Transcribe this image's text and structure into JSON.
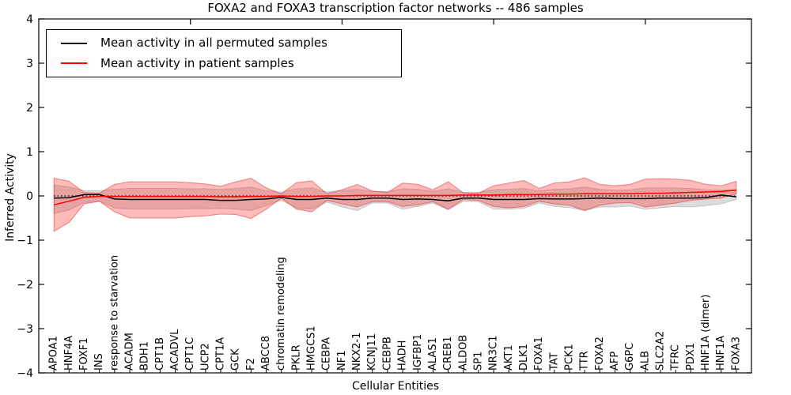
{
  "title": "FOXA2 and FOXA3 transcription factor networks -- 486 samples",
  "legend": {
    "items": [
      {
        "label": "Mean activity in all permuted samples",
        "color": "#000000"
      },
      {
        "label": "Mean activity in patient samples",
        "color": "#ff0000"
      }
    ]
  },
  "axes": {
    "ylabel": "Inferred Activity",
    "xlabel": "Cellular Entities",
    "yticks": [
      {
        "value": -4,
        "label": "−4"
      },
      {
        "value": -3,
        "label": "−3"
      },
      {
        "value": -2,
        "label": "−2"
      },
      {
        "value": -1,
        "label": "−1"
      },
      {
        "value": 0,
        "label": "0"
      },
      {
        "value": 1,
        "label": "1"
      },
      {
        "value": 2,
        "label": "2"
      },
      {
        "value": 3,
        "label": "3"
      },
      {
        "value": 4,
        "label": "4"
      }
    ],
    "top_tick_indices": [
      9,
      19,
      29,
      39
    ]
  },
  "chart_data": {
    "type": "line",
    "title": "FOXA2 and FOXA3 transcription factor networks -- 486 samples",
    "xlabel": "Cellular Entities",
    "ylabel": "Inferred Activity",
    "ylim": [
      -4,
      4
    ],
    "grid": false,
    "legend_position": "upper left",
    "zero_reference_line": true,
    "categories": [
      "APOA1",
      "HNF4A",
      "FOXF1",
      "INS",
      "response to starvation",
      "ACADM",
      "BDH1",
      "CPT1B",
      "ACADVL",
      "CPT1C",
      "UCP2",
      "CPT1A",
      "GCK",
      "F2",
      "ABCC8",
      "chromatin remodeling",
      "PKLR",
      "HMGCS1",
      "CEBPA",
      "NF1",
      "NKX2-1",
      "KCNJ11",
      "CEBPB",
      "HADH",
      "IGFBP1",
      "ALAS1",
      "CREB1",
      "ALDOB",
      "SP1",
      "NR3C1",
      "AKT1",
      "DLK1",
      "FOXA1",
      "TAT",
      "PCK1",
      "TTR",
      "FOXA2",
      "AFP",
      "G6PC",
      "ALB",
      "SLC2A2",
      "TFRC",
      "PDX1",
      "HNF1A (dimer)",
      "HNF1A",
      "FOXA3"
    ],
    "series": [
      {
        "name": "Mean activity in all permuted samples",
        "id": "permuted-mean",
        "color": "#000000",
        "values": [
          -0.05,
          -0.04,
          0.03,
          0.03,
          -0.07,
          -0.08,
          -0.08,
          -0.08,
          -0.08,
          -0.08,
          -0.08,
          -0.1,
          -0.1,
          -0.08,
          -0.07,
          -0.03,
          -0.08,
          -0.08,
          -0.05,
          -0.08,
          -0.08,
          -0.05,
          -0.05,
          -0.08,
          -0.07,
          -0.08,
          -0.11,
          -0.05,
          -0.05,
          -0.08,
          -0.08,
          -0.08,
          -0.06,
          -0.07,
          -0.07,
          -0.06,
          -0.05,
          -0.06,
          -0.06,
          -0.06,
          -0.05,
          -0.05,
          -0.05,
          -0.04,
          0.02,
          -0.02
        ]
      },
      {
        "name": "Mean activity in patient samples",
        "id": "patient-mean",
        "color": "#ff0000",
        "values": [
          -0.2,
          -0.12,
          -0.03,
          -0.01,
          -0.01,
          -0.01,
          -0.01,
          -0.01,
          -0.01,
          -0.01,
          -0.01,
          -0.02,
          -0.02,
          -0.01,
          -0.01,
          0.0,
          -0.01,
          -0.01,
          0.0,
          0.0,
          0.01,
          0.01,
          0.01,
          0.01,
          0.01,
          0.01,
          0.01,
          0.02,
          0.02,
          0.02,
          0.03,
          0.03,
          0.03,
          0.04,
          0.04,
          0.05,
          0.05,
          0.05,
          0.05,
          0.06,
          0.06,
          0.07,
          0.08,
          0.09,
          0.1,
          0.13
        ]
      }
    ],
    "bands": [
      {
        "id": "permuted-range",
        "fill": "rgba(128,128,128,0.28)",
        "edge": "rgba(120,120,120,0.35)",
        "upper": [
          0.25,
          0.2,
          0.12,
          0.12,
          0.15,
          0.17,
          0.17,
          0.17,
          0.17,
          0.16,
          0.16,
          0.15,
          0.17,
          0.2,
          0.12,
          0.08,
          0.16,
          0.18,
          0.09,
          0.12,
          0.15,
          0.1,
          0.1,
          0.16,
          0.15,
          0.1,
          0.16,
          0.08,
          0.08,
          0.14,
          0.15,
          0.17,
          0.11,
          0.15,
          0.16,
          0.2,
          0.15,
          0.13,
          0.14,
          0.18,
          0.18,
          0.18,
          0.17,
          0.14,
          0.13,
          0.15
        ],
        "lower": [
          -0.4,
          -0.32,
          -0.15,
          -0.12,
          -0.27,
          -0.3,
          -0.3,
          -0.3,
          -0.3,
          -0.29,
          -0.29,
          -0.28,
          -0.3,
          -0.33,
          -0.22,
          -0.1,
          -0.27,
          -0.3,
          -0.14,
          -0.25,
          -0.33,
          -0.16,
          -0.16,
          -0.3,
          -0.24,
          -0.16,
          -0.31,
          -0.12,
          -0.13,
          -0.3,
          -0.3,
          -0.28,
          -0.16,
          -0.24,
          -0.26,
          -0.33,
          -0.25,
          -0.25,
          -0.23,
          -0.3,
          -0.27,
          -0.24,
          -0.25,
          -0.22,
          -0.18,
          -0.08
        ]
      },
      {
        "id": "patient-range",
        "fill": "rgba(255,40,40,0.32)",
        "edge": "rgba(225,50,50,0.55)",
        "upper": [
          0.4,
          0.33,
          0.08,
          0.06,
          0.26,
          0.32,
          0.32,
          0.32,
          0.32,
          0.3,
          0.27,
          0.22,
          0.32,
          0.4,
          0.18,
          0.05,
          0.3,
          0.34,
          0.05,
          0.14,
          0.26,
          0.11,
          0.08,
          0.29,
          0.26,
          0.14,
          0.32,
          0.07,
          0.06,
          0.23,
          0.29,
          0.35,
          0.17,
          0.29,
          0.32,
          0.41,
          0.26,
          0.23,
          0.26,
          0.38,
          0.39,
          0.38,
          0.35,
          0.26,
          0.23,
          0.33
        ],
        "lower": [
          -0.8,
          -0.6,
          -0.18,
          -0.12,
          -0.36,
          -0.5,
          -0.5,
          -0.5,
          -0.5,
          -0.47,
          -0.45,
          -0.41,
          -0.42,
          -0.51,
          -0.3,
          -0.05,
          -0.3,
          -0.36,
          -0.1,
          -0.18,
          -0.25,
          -0.13,
          -0.13,
          -0.24,
          -0.2,
          -0.13,
          -0.3,
          -0.08,
          -0.1,
          -0.24,
          -0.27,
          -0.24,
          -0.12,
          -0.18,
          -0.21,
          -0.33,
          -0.21,
          -0.16,
          -0.15,
          -0.25,
          -0.21,
          -0.16,
          -0.1,
          -0.07,
          -0.05,
          0.05
        ]
      }
    ]
  }
}
